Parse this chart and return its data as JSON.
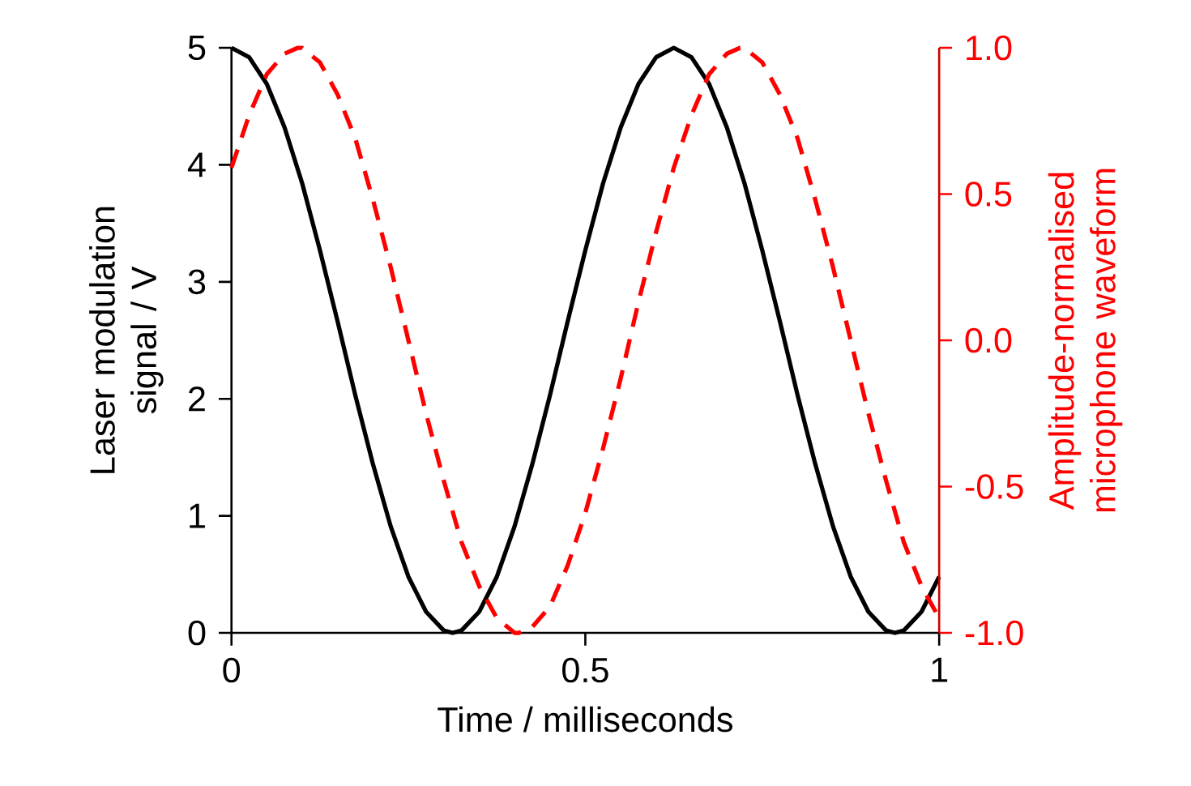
{
  "chart_data": {
    "type": "line",
    "xlabel": "Time / milliseconds",
    "ylabel": "Laser modulation signal / V",
    "y2label": "Amplitude-normalised microphone waveform",
    "xlim": [
      0,
      1
    ],
    "xticks": [
      0,
      0.5,
      1
    ],
    "ylim": [
      0,
      5
    ],
    "yticks": [
      0,
      1,
      2,
      3,
      4,
      5
    ],
    "y2lim": [
      -1,
      1
    ],
    "y2ticks": [
      {
        "value": -1,
        "label": "-1.0"
      },
      {
        "value": -0.5,
        "label": "-0.5"
      },
      {
        "value": 0,
        "label": "0.0"
      },
      {
        "value": 0.5,
        "label": "0.5"
      },
      {
        "value": 1,
        "label": "1.0"
      }
    ],
    "series": [
      {
        "color": "#000000",
        "line_style": "solid",
        "x": [
          0,
          0.025,
          0.05,
          0.075,
          0.1,
          0.125,
          0.15,
          0.175,
          0.2,
          0.225,
          0.25,
          0.275,
          0.3,
          0.3125,
          0.325,
          0.35,
          0.375,
          0.4,
          0.425,
          0.45,
          0.475,
          0.5,
          0.525,
          0.55,
          0.575,
          0.6,
          0.625,
          0.65,
          0.675,
          0.7,
          0.725,
          0.75,
          0.775,
          0.8,
          0.825,
          0.85,
          0.875,
          0.9,
          0.925,
          0.9375,
          0.95,
          0.975,
          1
        ],
        "values": [
          5,
          4.92,
          4.69,
          4.32,
          3.84,
          3.27,
          2.66,
          2.03,
          1.44,
          0.91,
          0.48,
          0.18,
          0.02,
          0,
          0.02,
          0.18,
          0.48,
          0.91,
          1.44,
          2.03,
          2.66,
          3.27,
          3.84,
          4.32,
          4.69,
          4.92,
          5,
          4.92,
          4.69,
          4.32,
          3.84,
          3.27,
          2.66,
          2.03,
          1.44,
          0.91,
          0.48,
          0.18,
          0.02,
          0,
          0.02,
          0.18,
          0.48
        ]
      },
      {
        "color": "#ff0000",
        "line_style": "dashed",
        "axis": "y2",
        "x": [
          0,
          0.025,
          0.05,
          0.075,
          0.09375,
          0.1,
          0.125,
          0.15,
          0.175,
          0.2,
          0.225,
          0.25,
          0.275,
          0.3,
          0.325,
          0.35,
          0.375,
          0.4,
          0.40625,
          0.425,
          0.45,
          0.475,
          0.5,
          0.525,
          0.55,
          0.575,
          0.6,
          0.625,
          0.65,
          0.675,
          0.7,
          0.71875,
          0.725,
          0.75,
          0.775,
          0.8,
          0.825,
          0.85,
          0.875,
          0.9,
          0.925,
          0.95,
          0.975,
          1
        ],
        "values": [
          0.59,
          0.77,
          0.91,
          0.98,
          1,
          1,
          0.95,
          0.84,
          0.69,
          0.48,
          0.25,
          0,
          -0.25,
          -0.48,
          -0.69,
          -0.84,
          -0.95,
          -1,
          -1,
          -0.98,
          -0.91,
          -0.77,
          -0.59,
          -0.37,
          -0.13,
          0.13,
          0.37,
          0.59,
          0.77,
          0.91,
          0.98,
          1,
          1,
          0.95,
          0.84,
          0.69,
          0.48,
          0.25,
          0,
          -0.25,
          -0.48,
          -0.69,
          -0.84,
          -0.95
        ]
      }
    ]
  }
}
